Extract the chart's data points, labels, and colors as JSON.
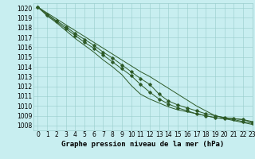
{
  "xlabel": "Graphe pression niveau de la mer (hPa)",
  "xlim": [
    -0.5,
    23
  ],
  "ylim": [
    1007.5,
    1020.5
  ],
  "yticks": [
    1008,
    1009,
    1010,
    1011,
    1012,
    1013,
    1014,
    1015,
    1016,
    1017,
    1018,
    1019,
    1020
  ],
  "xticks": [
    0,
    1,
    2,
    3,
    4,
    5,
    6,
    7,
    8,
    9,
    10,
    11,
    12,
    13,
    14,
    15,
    16,
    17,
    18,
    19,
    20,
    21,
    22,
    23
  ],
  "bg_color": "#c8eef0",
  "grid_color": "#99cccc",
  "line_color": "#2d5a27",
  "line1_x": [
    0,
    1,
    2,
    3,
    4,
    5,
    6,
    7,
    8,
    9,
    10,
    11,
    12,
    13,
    14,
    15,
    16,
    17,
    18,
    19,
    20,
    21,
    22,
    23
  ],
  "line1_y": [
    1020.1,
    1019.5,
    1018.9,
    1018.3,
    1017.7,
    1017.1,
    1016.5,
    1015.9,
    1015.3,
    1014.7,
    1014.1,
    1013.5,
    1013.0,
    1012.4,
    1011.8,
    1011.2,
    1010.6,
    1010.0,
    1009.5,
    1009.0,
    1008.8,
    1008.7,
    1008.6,
    1008.4
  ],
  "line2_x": [
    0,
    1,
    2,
    3,
    4,
    5,
    6,
    7,
    8,
    9,
    10,
    11,
    12,
    13,
    14,
    15,
    16,
    17,
    18,
    19,
    20,
    21,
    22,
    23
  ],
  "line2_y": [
    1020.1,
    1019.4,
    1018.7,
    1018.1,
    1017.4,
    1016.8,
    1016.2,
    1015.5,
    1014.9,
    1014.2,
    1013.5,
    1012.8,
    1012.2,
    1011.2,
    1010.5,
    1010.1,
    1009.8,
    1009.5,
    1009.2,
    1009.0,
    1008.8,
    1008.7,
    1008.6,
    1008.3
  ],
  "line3_x": [
    0,
    1,
    2,
    3,
    4,
    5,
    6,
    7,
    8,
    9,
    10,
    11,
    12,
    13,
    14,
    15,
    16,
    17,
    18,
    19,
    20,
    21,
    22,
    23
  ],
  "line3_y": [
    1020.1,
    1019.3,
    1018.6,
    1017.9,
    1017.2,
    1016.5,
    1015.9,
    1015.2,
    1014.5,
    1013.8,
    1013.1,
    1012.2,
    1011.4,
    1010.7,
    1010.2,
    1009.8,
    1009.5,
    1009.2,
    1009.0,
    1008.8,
    1008.7,
    1008.6,
    1008.4,
    1008.2
  ],
  "line4_x": [
    0,
    1,
    2,
    3,
    4,
    5,
    6,
    7,
    8,
    9,
    10,
    11,
    12,
    13,
    14,
    15,
    16,
    17,
    18,
    19,
    20,
    21,
    22,
    23
  ],
  "line4_y": [
    1020.1,
    1019.2,
    1018.5,
    1017.7,
    1016.9,
    1016.2,
    1015.5,
    1014.7,
    1014.0,
    1013.2,
    1012.1,
    1011.2,
    1010.7,
    1010.3,
    1009.9,
    1009.6,
    1009.4,
    1009.2,
    1009.0,
    1008.8,
    1008.7,
    1008.5,
    1008.3,
    1008.1
  ],
  "line2_markers": [
    0,
    1,
    2,
    3,
    4,
    5,
    6,
    7,
    8,
    9,
    10,
    11,
    12,
    13,
    14,
    15,
    16,
    17,
    18,
    19,
    20,
    21,
    22,
    23
  ],
  "line3_markers": [
    0,
    1,
    2,
    3,
    4,
    5,
    6,
    7,
    8,
    9,
    10,
    11,
    12,
    13,
    14,
    15,
    16,
    17,
    18,
    19,
    20,
    21,
    22,
    23
  ],
  "fontsize_label": 6.5,
  "fontsize_tick": 5.5
}
